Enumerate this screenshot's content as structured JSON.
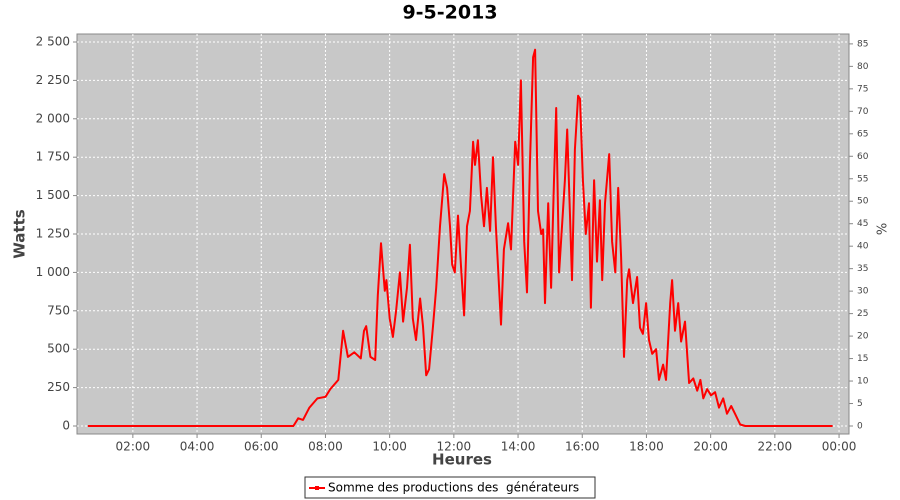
{
  "chart_data": {
    "type": "line",
    "title": "9-5-2013",
    "x_label": "Heures",
    "y_label": "Watts",
    "y2_label": "%",
    "x": [
      0.6,
      3,
      6,
      7,
      7.15,
      7.3,
      7.5,
      7.75,
      8.0,
      8.15,
      8.4,
      8.55,
      8.7,
      8.9,
      9.1,
      9.2,
      9.27,
      9.4,
      9.55,
      9.63,
      9.73,
      9.85,
      9.9,
      10.0,
      10.1,
      10.2,
      10.32,
      10.42,
      10.54,
      10.63,
      10.72,
      10.82,
      10.95,
      11.04,
      11.14,
      11.23,
      11.35,
      11.45,
      11.57,
      11.7,
      11.79,
      11.88,
      11.95,
      12.03,
      12.13,
      12.22,
      12.32,
      12.41,
      12.5,
      12.6,
      12.66,
      12.75,
      12.85,
      12.94,
      13.03,
      13.13,
      13.22,
      13.31,
      13.41,
      13.47,
      13.56,
      13.69,
      13.78,
      13.91,
      14.0,
      14.09,
      14.19,
      14.28,
      14.37,
      14.47,
      14.53,
      14.62,
      14.72,
      14.78,
      14.84,
      14.94,
      15.03,
      15.12,
      15.19,
      15.28,
      15.37,
      15.46,
      15.53,
      15.62,
      15.68,
      15.77,
      15.87,
      15.93,
      16.02,
      16.11,
      16.21,
      16.27,
      16.37,
      16.46,
      16.55,
      16.62,
      16.71,
      16.84,
      16.93,
      17.03,
      17.12,
      17.21,
      17.3,
      17.4,
      17.46,
      17.58,
      17.71,
      17.8,
      17.89,
      17.99,
      18.08,
      18.18,
      18.3,
      18.39,
      18.52,
      18.61,
      18.74,
      18.8,
      18.89,
      18.99,
      19.08,
      19.2,
      19.33,
      19.46,
      19.58,
      19.68,
      19.77,
      19.89,
      20.01,
      20.14,
      20.26,
      20.39,
      20.51,
      20.64,
      20.76,
      20.92,
      21.08,
      22.5,
      23.8
    ],
    "series": [
      {
        "name": "Somme des productions des  générateurs",
        "color": "#ff0000",
        "values": [
          0,
          0,
          0,
          0,
          50,
          40,
          120,
          180,
          190,
          240,
          300,
          620,
          450,
          480,
          440,
          620,
          650,
          450,
          430,
          850,
          1190,
          880,
          950,
          700,
          580,
          750,
          1000,
          680,
          900,
          1180,
          700,
          560,
          830,
          650,
          330,
          370,
          650,
          900,
          1300,
          1640,
          1550,
          1300,
          1050,
          1000,
          1370,
          1050,
          720,
          1300,
          1400,
          1850,
          1700,
          1860,
          1500,
          1300,
          1550,
          1270,
          1750,
          1300,
          900,
          660,
          1150,
          1320,
          1150,
          1850,
          1700,
          2250,
          1200,
          870,
          1700,
          2400,
          2450,
          1400,
          1250,
          1280,
          800,
          1450,
          900,
          1600,
          2070,
          1000,
          1300,
          1600,
          1930,
          1350,
          950,
          1800,
          2150,
          2130,
          1600,
          1250,
          1450,
          770,
          1600,
          1070,
          1470,
          950,
          1450,
          1770,
          1200,
          1000,
          1550,
          1100,
          450,
          950,
          1020,
          800,
          970,
          640,
          600,
          800,
          560,
          470,
          500,
          300,
          400,
          300,
          800,
          950,
          620,
          800,
          550,
          680,
          280,
          310,
          230,
          300,
          180,
          240,
          200,
          220,
          120,
          180,
          80,
          130,
          80,
          10,
          0,
          0,
          0
        ]
      }
    ],
    "xlim": [
      0.26,
      24.31
    ],
    "xticks": [
      {
        "value": 2,
        "label": "02:00"
      },
      {
        "value": 4,
        "label": "04:00"
      },
      {
        "value": 6,
        "label": "06:00"
      },
      {
        "value": 8,
        "label": "08:00"
      },
      {
        "value": 10,
        "label": "10:00"
      },
      {
        "value": 12,
        "label": "12:00"
      },
      {
        "value": 14,
        "label": "14:00"
      },
      {
        "value": 16,
        "label": "16:00"
      },
      {
        "value": 18,
        "label": "18:00"
      },
      {
        "value": 20,
        "label": "20:00"
      },
      {
        "value": 22,
        "label": "22:00"
      },
      {
        "value": 24,
        "label": "00:00"
      }
    ],
    "ylim": [
      -52,
      2552
    ],
    "yticks": [
      0,
      250,
      500,
      750,
      {
        "value": 1000,
        "label": "1 000"
      },
      {
        "value": 1250,
        "label": "1 250"
      },
      {
        "value": 1500,
        "label": "1 500"
      },
      {
        "value": 1750,
        "label": "1 750"
      },
      {
        "value": 2000,
        "label": "2 000"
      },
      {
        "value": 2250,
        "label": "2 250"
      },
      {
        "value": 2500,
        "label": "2 500"
      }
    ],
    "y2lim": [
      -1.78,
      87.2
    ],
    "y2ticks": [
      0,
      5,
      10,
      15,
      20,
      25,
      30,
      35,
      40,
      45,
      50,
      55,
      60,
      65,
      70,
      75,
      80,
      85
    ],
    "grid": true,
    "legend": "bottom"
  }
}
